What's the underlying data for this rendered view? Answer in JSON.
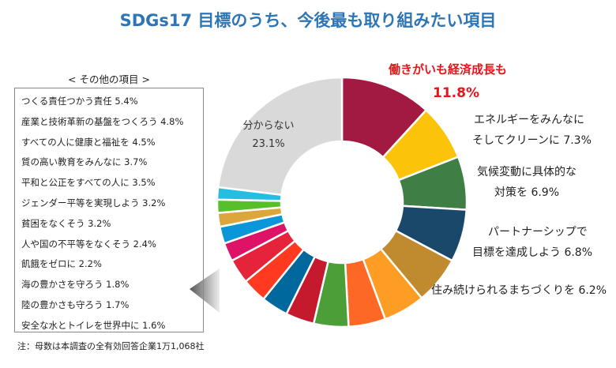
{
  "chart_data": {
    "type": "pie",
    "title": "SDGs17 目標のうち、今後最も取り組みたい項目",
    "donut": true,
    "slices": [
      {
        "label": "働きがいも経済成長も",
        "value": 11.8,
        "color": "#A21942"
      },
      {
        "label": "エネルギーをみんなにそしてクリーンに",
        "value": 7.3,
        "color": "#FCC30B"
      },
      {
        "label": "気候変動に具体的な対策を",
        "value": 6.9,
        "color": "#3F7E44"
      },
      {
        "label": "パートナーシップで目標を達成しよう",
        "value": 6.8,
        "color": "#19486A"
      },
      {
        "label": "住み続けられるまちづくりを",
        "value": 6.2,
        "color": "#BF8B2E"
      },
      {
        "label": "つくる責任つかう責任",
        "value": 5.4,
        "color": "#FD9D24"
      },
      {
        "label": "産業と技術革新の基盤をつくろう",
        "value": 4.8,
        "color": "#FD6925"
      },
      {
        "label": "すべての人に健康と福祉を",
        "value": 4.5,
        "color": "#4C9F38"
      },
      {
        "label": "質の高い教育をみんなに",
        "value": 3.7,
        "color": "#C5192D"
      },
      {
        "label": "平和と公正をすべての人に",
        "value": 3.5,
        "color": "#00689D"
      },
      {
        "label": "ジェンダー平等を実現しよう",
        "value": 3.2,
        "color": "#FF3A21"
      },
      {
        "label": "貧困をなくそう",
        "value": 3.2,
        "color": "#E5243B"
      },
      {
        "label": "人や国の不平等をなくそう",
        "value": 2.4,
        "color": "#DD1367"
      },
      {
        "label": "飢餓をゼロに",
        "value": 2.2,
        "color": "#0A97D9"
      },
      {
        "label": "海の豊かさを守ろう",
        "value": 1.8,
        "color": "#DDA63A"
      },
      {
        "label": "陸の豊かさも守ろう",
        "value": 1.7,
        "color": "#56C02B"
      },
      {
        "label": "安全な水とトイレを世界中に",
        "value": 1.6,
        "color": "#26BDE2"
      },
      {
        "label": "分からない",
        "value": 23.1,
        "color": "#D9D9D9"
      }
    ]
  },
  "labels": {
    "top1_name": "働きがいも経済成長も",
    "top1_value": "11.8%",
    "l2a": "エネルギーをみんなに",
    "l2b": "そしてクリーンに  7.3%",
    "l3a": "気候変動に具体的な",
    "l3b": "対策を  6.9%",
    "l4a": "パートナーシップで",
    "l4b": "目標を達成しよう  6.8%",
    "l5": "住み続けられるまちづくりを  6.2%",
    "unknown_name": "分からない",
    "unknown_value": "23.1%"
  },
  "others": {
    "title": "< その他の項目 >",
    "items": [
      "つくる責任つかう責任  5.4%",
      "産業と技術革新の基盤をつくろう  4.8%",
      "すべての人に健康と福祉を  4.5%",
      "質の高い教育をみんなに  3.7%",
      "平和と公正をすべての人に  3.5%",
      "ジェンダー平等を実現しよう  3.2%",
      "貧困をなくそう  3.2%",
      "人や国の不平等をなくそう  2.4%",
      "飢餓をゼロに  2.2%",
      "海の豊かさを守ろう  1.8%",
      "陸の豊かさも守ろう  1.7%",
      "安全な水とトイレを世界中に  1.6%"
    ]
  },
  "note": "注：母数は本調査の全有効回答企業1万1,068社"
}
